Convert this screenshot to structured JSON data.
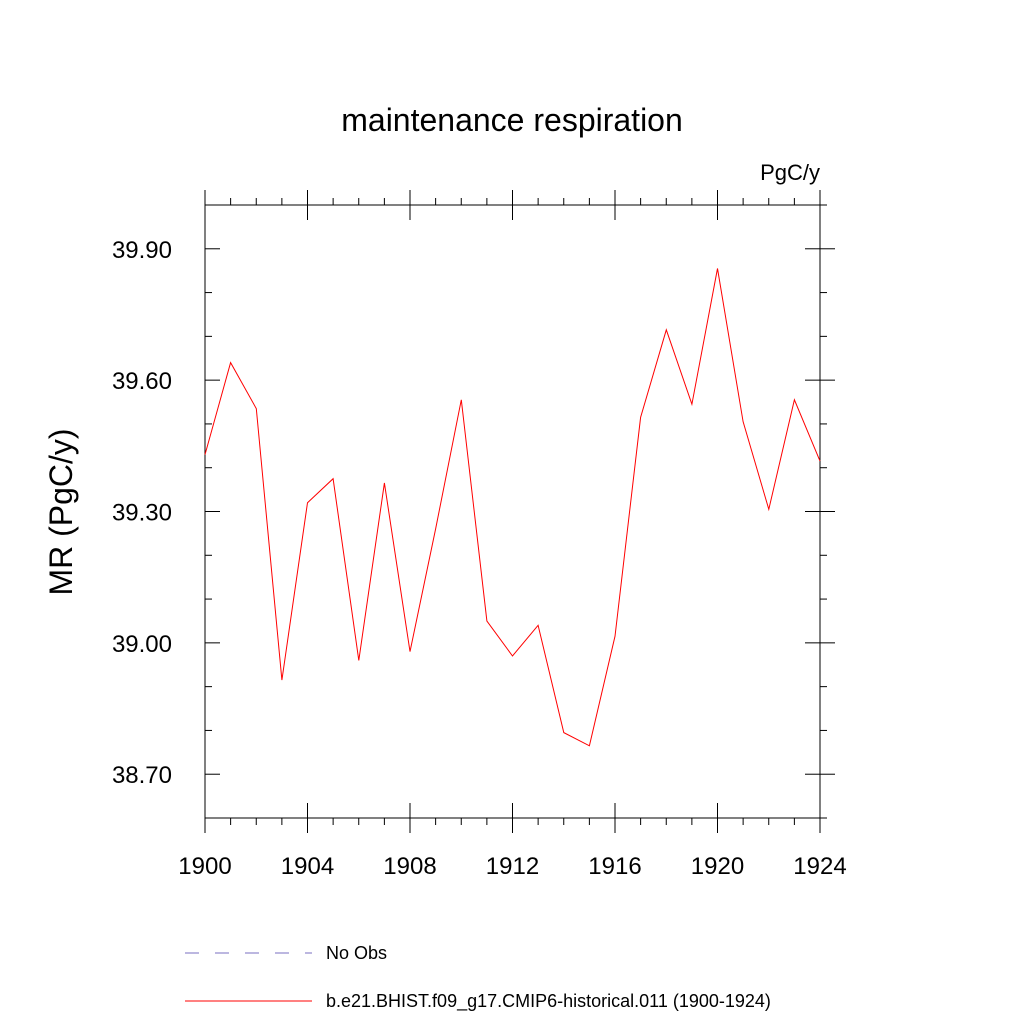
{
  "chart_data": {
    "type": "line",
    "title": "maintenance respiration",
    "units": "PgC/y",
    "ylabel": "MR  (PgC/y)",
    "xlabel": "",
    "xlim": [
      1900,
      1924
    ],
    "ylim": [
      38.6,
      40.0
    ],
    "xticks": [
      1900,
      1904,
      1908,
      1912,
      1916,
      1920,
      1924
    ],
    "xtick_labels": [
      "1900",
      "1904",
      "1908",
      "1912",
      "1916",
      "1920",
      "1924"
    ],
    "yticks": [
      38.7,
      39.0,
      39.3,
      39.6,
      39.9
    ],
    "ytick_labels": [
      "38.70",
      "39.00",
      "39.30",
      "39.60",
      "39.90"
    ],
    "series": [
      {
        "name": "b.e21.BHIST.f09_g17.CMIP6-historical.011 (1900-1924)",
        "color": "#ff0000",
        "x": [
          1900,
          1901,
          1902,
          1903,
          1904,
          1905,
          1906,
          1907,
          1908,
          1909,
          1910,
          1911,
          1912,
          1913,
          1914,
          1915,
          1916,
          1917,
          1918,
          1919,
          1920,
          1921,
          1922,
          1923,
          1924
        ],
        "y": [
          39.43,
          39.64,
          39.535,
          38.915,
          39.32,
          39.375,
          38.96,
          39.365,
          38.98,
          39.26,
          39.555,
          39.05,
          38.97,
          39.04,
          38.795,
          38.765,
          39.015,
          39.515,
          39.715,
          39.545,
          39.855,
          39.505,
          39.305,
          39.555,
          39.415
        ]
      }
    ],
    "legend": {
      "placement": "bottom",
      "entries": [
        {
          "label": "No Obs",
          "color": "#7a6fc2",
          "style": "dashed"
        },
        {
          "label": "b.e21.BHIST.f09_g17.CMIP6-historical.011 (1900-1924)",
          "color": "#ff0000",
          "style": "solid"
        }
      ]
    }
  }
}
